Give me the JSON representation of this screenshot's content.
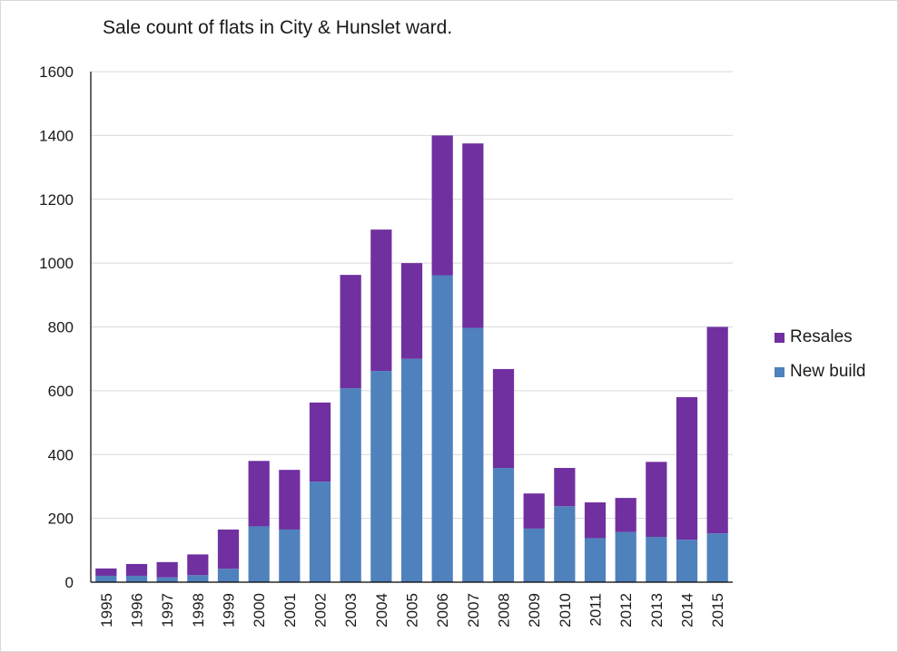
{
  "chart_data": {
    "type": "bar",
    "stacked": true,
    "title": "Sale count of flats in City & Hunslet ward.",
    "xlabel": "",
    "ylabel": "",
    "ylim": [
      0,
      1600
    ],
    "yticks": [
      0,
      200,
      400,
      600,
      800,
      1000,
      1200,
      1400,
      1600
    ],
    "grid": true,
    "legend_position": "right",
    "categories": [
      "1995",
      "1996",
      "1997",
      "1998",
      "1999",
      "2000",
      "2001",
      "2002",
      "2003",
      "2004",
      "2005",
      "2006",
      "2007",
      "2008",
      "2009",
      "2010",
      "2011",
      "2012",
      "2013",
      "2014",
      "2015"
    ],
    "series": [
      {
        "name": "New build",
        "color": "#4f81bd",
        "values": [
          20,
          20,
          15,
          22,
          42,
          175,
          165,
          315,
          608,
          662,
          700,
          962,
          797,
          358,
          168,
          238,
          138,
          157,
          142,
          133,
          153
        ]
      },
      {
        "name": "Resales",
        "color": "#7030a0",
        "values": [
          23,
          37,
          48,
          65,
          123,
          205,
          187,
          248,
          355,
          443,
          300,
          438,
          578,
          310,
          110,
          120,
          112,
          107,
          235,
          447,
          647
        ]
      }
    ]
  }
}
